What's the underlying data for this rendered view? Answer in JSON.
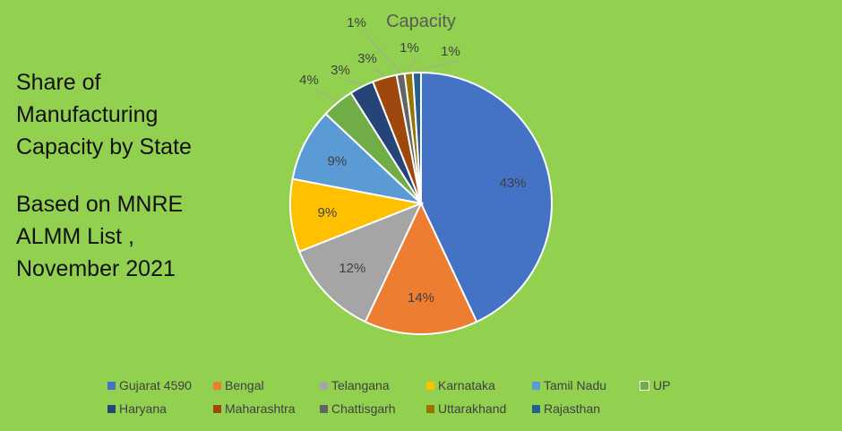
{
  "note": {
    "line1": "Share of",
    "line2": "Manufacturing",
    "line3": "Capacity by State",
    "line4": "Based on MNRE",
    "line5": "ALMM List ,",
    "line6": "November 2021"
  },
  "chart_data": {
    "type": "pie",
    "title": "Capacity",
    "legend_position": "bottom",
    "categories": [
      "Gujarat 4590",
      "Bengal",
      "Telangana",
      "Karnataka",
      "Tamil Nadu",
      "UP",
      "Haryana",
      "Maharashtra",
      "Chattisgarh",
      "Uttarakhand",
      "Rajasthan"
    ],
    "values": [
      43,
      14,
      12,
      9,
      9,
      4,
      3,
      3,
      1,
      1,
      1
    ],
    "labels": [
      "43%",
      "14%",
      "12%",
      "9%",
      "9%",
      "4%",
      "3%",
      "3%",
      "1%",
      "1%",
      "1%"
    ],
    "colors": [
      "#4472c4",
      "#ed7d31",
      "#a5a5a5",
      "#ffc000",
      "#5b9bd5",
      "#70ad47",
      "#264478",
      "#9e480e",
      "#636363",
      "#997300",
      "#255e91"
    ]
  }
}
